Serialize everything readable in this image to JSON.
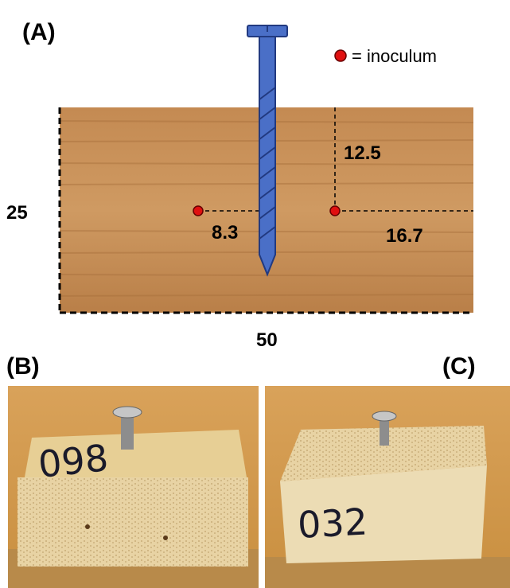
{
  "panel_a": {
    "label": "(A)",
    "legend": "= inoculum",
    "dims": {
      "depth": "12.5",
      "left_offset": "8.3",
      "right_offset": "16.7",
      "height": "25",
      "width": "50"
    }
  },
  "panel_b": {
    "label": "(B)",
    "sample_id": "098"
  },
  "panel_c": {
    "label": "(C)",
    "sample_id": "032"
  }
}
